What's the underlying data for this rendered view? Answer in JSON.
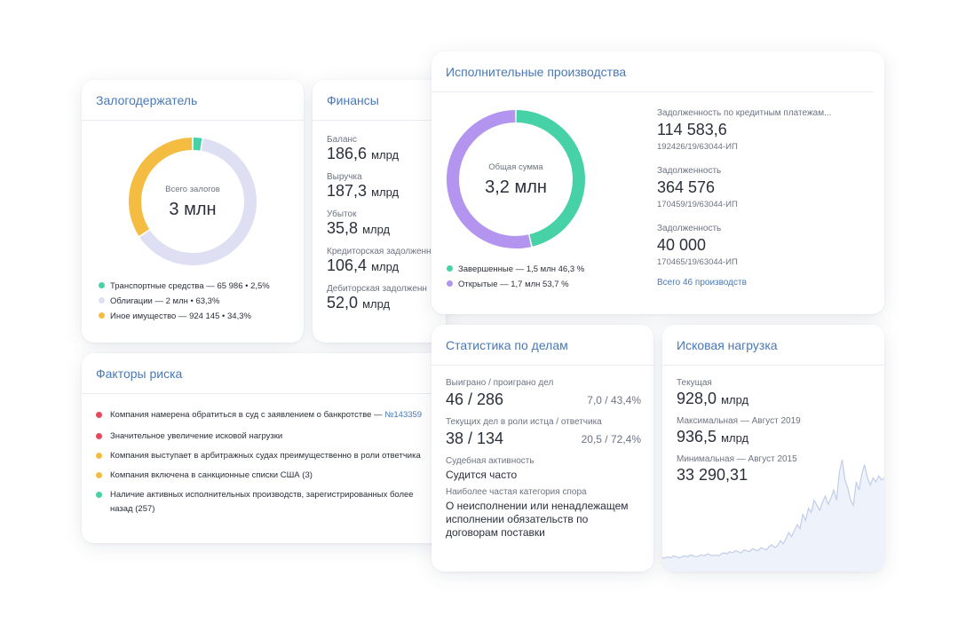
{
  "colors": {
    "accent": "#4a78b6",
    "green": "#47d1a6",
    "yellow": "#f4bd42",
    "lavender": "#dedff2",
    "purple": "#b394ef",
    "red": "#e5495e",
    "chart_line": "#c2cdea",
    "chart_fill": "#eef2fa"
  },
  "pledge": {
    "title": "Залогодержатель",
    "center_label": "Всего залогов",
    "center_value": "3 млн",
    "legend": [
      {
        "label": "Транспортные средства — 65 986 • 2,5%",
        "color": "#47d1a6",
        "share": 2.5
      },
      {
        "label": "Облигации —   2 млн • 63,3%",
        "color": "#dedff2",
        "share": 63.3
      },
      {
        "label": "Иное имущество — 924 145 • 34,3%",
        "color": "#f4bd42",
        "share": 34.3
      }
    ]
  },
  "finance": {
    "title": "Финансы",
    "items": [
      {
        "label": "Баланс",
        "value": "186,6",
        "unit": "млрд"
      },
      {
        "label": "Выручка",
        "value": "187,3",
        "unit": "млрд"
      },
      {
        "label": "Убыток",
        "value": "35,8",
        "unit": "млрд"
      },
      {
        "label": "Кредиторская задолженн",
        "value": "106,4",
        "unit": "млрд"
      },
      {
        "label": "Дебиторская задолженн",
        "value": "52,0",
        "unit": "млрд"
      }
    ]
  },
  "enforcement": {
    "title": "Исполнительные производства",
    "center_label": "Общая сумма",
    "center_value": "3,2 млн",
    "legend": [
      {
        "label": "Завершенные — 1,5 млн 46,3 %",
        "color": "#47d1a6",
        "share": 46.3
      },
      {
        "label": "Открытые — 1,7 млн 53,7 %",
        "color": "#b394ef",
        "share": 53.7
      }
    ],
    "items": [
      {
        "label": "Задолженность по кредитным платежам...",
        "value": "114 583,6",
        "id": "192426/19/63044-ИП"
      },
      {
        "label": "Задолженность",
        "value": "364 576",
        "id": "170459/19/63044-ИП"
      },
      {
        "label": "Задолженность",
        "value": "40 000",
        "id": "170465/19/63044-ИП"
      }
    ],
    "all_link": "Всего 46 производств"
  },
  "risk": {
    "title": "Факторы риска",
    "items": [
      {
        "text": "Компания намерена обратиться в суд с заявлением о банкротстве — ",
        "link": "№143359",
        "color": "#e5495e"
      },
      {
        "text": "Значительное увеличение исковой нагрузки",
        "link": "",
        "color": "#e5495e"
      },
      {
        "text": "Компания выступает в арбитражных судах преимущественно в роли ответчика",
        "link": "",
        "color": "#f4bd42"
      },
      {
        "text": "Компания включена в санкционные списки США (3)",
        "link": "",
        "color": "#f4bd42"
      },
      {
        "text": "Наличие активных исполнительных производств, зарегистрированных более",
        "text2": "назад (257)",
        "link": "",
        "color": "#47d1a6"
      }
    ]
  },
  "stats": {
    "title": "Статистика по делам",
    "won_label": "Выиграно / проиграно дел",
    "won_value": "46 / 286",
    "won_pct": "7,0 / 43,4%",
    "current_label": "Текущих дел в роли истца / ответчика",
    "current_value": "38 / 134",
    "current_pct": "20,5 / 72,4%",
    "activity_label": "Судебная активность",
    "activity_value": "Судится часто",
    "category_label": "Наиболее частая категория спора",
    "category_lines": [
      "О неисполнении или ненадлежащем",
      "исполнении обязательств по",
      "договорам поставки"
    ]
  },
  "lawsuit": {
    "title": "Исковая нагрузка",
    "current_label": "Текущая",
    "current_value": "928,0",
    "current_unit": "млрд",
    "max_label": "Максимальная — Август 2019",
    "max_value": "936,5",
    "max_unit": "млрд",
    "min_label": "Минимальная — Август 2015",
    "min_value": "33 290,31",
    "series": [
      3,
      3,
      4,
      3,
      5,
      4,
      3,
      4,
      5,
      4,
      6,
      5,
      4,
      5,
      6,
      5,
      7,
      6,
      5,
      6,
      5,
      7,
      8,
      7,
      9,
      8,
      10,
      9,
      8,
      11,
      10,
      9,
      12,
      11,
      10,
      13,
      12,
      11,
      14,
      16,
      13,
      15,
      20,
      17,
      22,
      28,
      24,
      30,
      36,
      32,
      46,
      40,
      52,
      48,
      60,
      55,
      50,
      58,
      64,
      56,
      62,
      70,
      60,
      88,
      100,
      80,
      72,
      60,
      55,
      78,
      70,
      86,
      95,
      82,
      75,
      82,
      78,
      84,
      80,
      82
    ]
  }
}
